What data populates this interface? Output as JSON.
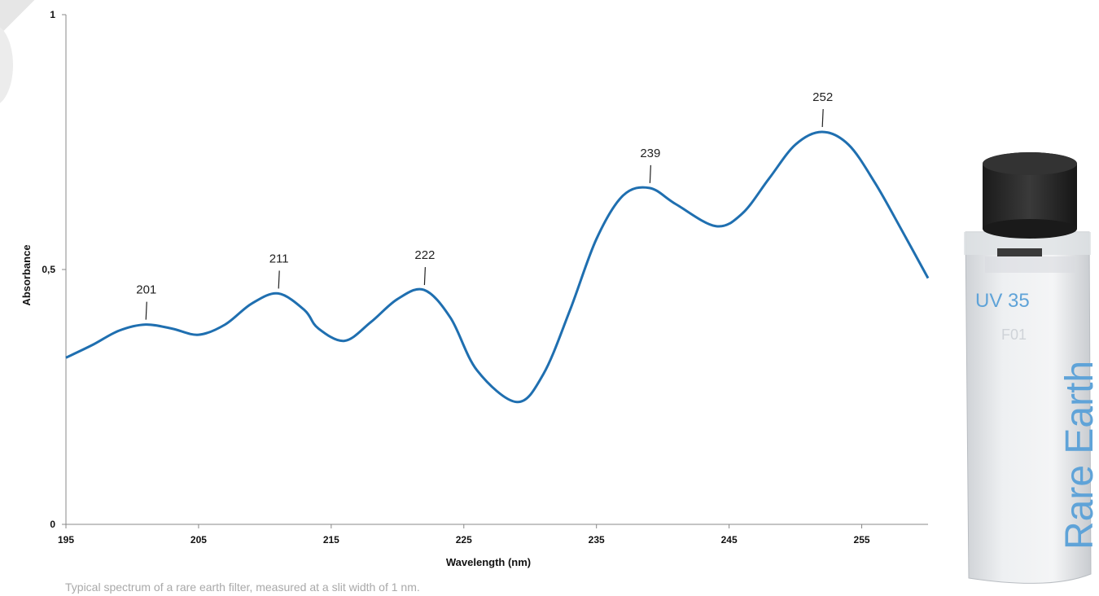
{
  "caption": "Typical spectrum of a rare earth filter, measured at a slit width of 1 nm.",
  "chart_data": {
    "type": "line",
    "title": "",
    "xlabel": "Wavelength (nm)",
    "ylabel": "Absorbance",
    "xlim": [
      195,
      260
    ],
    "ylim": [
      0,
      1
    ],
    "x_ticks": [
      "195",
      "205",
      "215",
      "225",
      "235",
      "245",
      "255"
    ],
    "y_ticks": [
      "0",
      "0,5",
      "1"
    ],
    "grid": false,
    "legend": "none",
    "series_color": "#1f6fb0",
    "series": [
      {
        "x": [
          195,
          197,
          199,
          201,
          203,
          205,
          207,
          209,
          211,
          213,
          214,
          216,
          218,
          220,
          222,
          224,
          226,
          229,
          231,
          233,
          235,
          237,
          239,
          241,
          244,
          246,
          248,
          250,
          252,
          254,
          256,
          258,
          260
        ],
        "y": [
          0.327,
          0.352,
          0.38,
          0.392,
          0.384,
          0.372,
          0.392,
          0.433,
          0.453,
          0.42,
          0.385,
          0.36,
          0.397,
          0.442,
          0.46,
          0.405,
          0.302,
          0.24,
          0.295,
          0.42,
          0.56,
          0.645,
          0.66,
          0.628,
          0.585,
          0.61,
          0.678,
          0.745,
          0.77,
          0.745,
          0.67,
          0.578,
          0.483
        ]
      }
    ],
    "peak_labels": [
      {
        "label": "201",
        "x": 201,
        "y": 0.392
      },
      {
        "label": "211",
        "x": 211,
        "y": 0.453
      },
      {
        "label": "222",
        "x": 222,
        "y": 0.46
      },
      {
        "label": "239",
        "x": 239,
        "y": 0.66
      },
      {
        "label": "252",
        "x": 252,
        "y": 0.77
      }
    ]
  },
  "cuvette": {
    "label_top": "UV 35",
    "label_serial": "F01",
    "label_vertical": "Rare Earth"
  }
}
